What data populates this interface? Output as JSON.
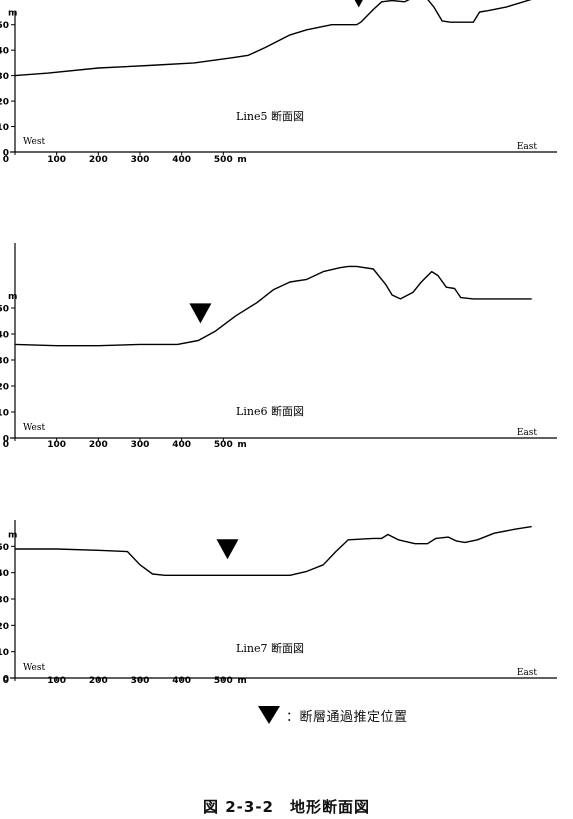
{
  "legend": {
    "symbol": "inverted-triangle",
    "text": "：断層通過推定位置"
  },
  "figure_caption": "図 2-3-2　地形断面図",
  "chart_data": [
    {
      "type": "line",
      "title": "Line5 断面図",
      "ylabel": "m",
      "xunit": "m",
      "xlim": [
        0,
        1260
      ],
      "ylim": [
        0,
        55
      ],
      "yticks": [
        0,
        10,
        20,
        30,
        40,
        50
      ],
      "xticks": [
        0,
        100,
        200,
        300,
        400,
        500
      ],
      "west_label": "West",
      "east_label": "East",
      "fault_x": 825,
      "series": [
        {
          "x": [
            0,
            80,
            200,
            320,
            430,
            520,
            560,
            600,
            660,
            700,
            760,
            820,
            830,
            860,
            880,
            905,
            935,
            960,
            985,
            1005,
            1025,
            1045,
            1100,
            1115,
            1135,
            1180,
            1240
          ],
          "y": [
            30,
            31,
            33,
            34,
            35,
            37,
            38,
            41,
            46,
            48,
            50,
            50,
            51,
            56,
            59,
            59.5,
            59,
            61,
            61,
            57,
            51.5,
            51,
            51,
            55,
            55.5,
            57,
            60
          ]
        }
      ]
    },
    {
      "type": "line",
      "title": "Line6 断面図",
      "ylabel": "m",
      "xunit": "m",
      "xlim": [
        0,
        1260
      ],
      "ylim": [
        0,
        75
      ],
      "yticks": [
        0,
        10,
        20,
        30,
        40,
        50
      ],
      "xticks": [
        0,
        100,
        200,
        300,
        400,
        500
      ],
      "west_label": "West",
      "east_label": "East",
      "fault_x": 445,
      "series": [
        {
          "x": [
            0,
            100,
            200,
            300,
            390,
            440,
            480,
            530,
            580,
            620,
            660,
            700,
            740,
            780,
            800,
            820,
            860,
            890,
            905,
            925,
            955,
            975,
            1000,
            1015,
            1035,
            1055,
            1070,
            1100,
            1240
          ],
          "y": [
            36,
            35.5,
            35.5,
            36,
            36,
            37.5,
            41,
            47,
            52,
            57,
            60,
            61,
            64,
            65.5,
            66,
            66,
            65,
            59,
            55,
            53.5,
            56,
            60,
            64,
            62.5,
            58,
            57.5,
            54,
            53.5,
            53.5
          ]
        }
      ]
    },
    {
      "type": "line",
      "title": "Line7 断面図",
      "ylabel": "m",
      "xunit": "m",
      "xlim": [
        0,
        1260
      ],
      "ylim": [
        0,
        60
      ],
      "yticks": [
        0,
        10,
        20,
        30,
        40,
        50
      ],
      "xticks": [
        0,
        100,
        200,
        300,
        400,
        500
      ],
      "west_label": "West",
      "east_label": "East",
      "fault_x": 510,
      "series": [
        {
          "x": [
            0,
            100,
            200,
            270,
            300,
            330,
            360,
            400,
            500,
            600,
            660,
            700,
            740,
            770,
            800,
            860,
            880,
            895,
            920,
            960,
            990,
            1010,
            1040,
            1060,
            1080,
            1110,
            1150,
            1200,
            1240
          ],
          "y": [
            49,
            49,
            48.5,
            48,
            43,
            39.5,
            39,
            39,
            39,
            39,
            39,
            40.5,
            43,
            48,
            52.5,
            53,
            53,
            54.5,
            52.5,
            51,
            51,
            53,
            53.5,
            52,
            51.5,
            52.5,
            55,
            56.5,
            57.5
          ]
        }
      ]
    }
  ]
}
